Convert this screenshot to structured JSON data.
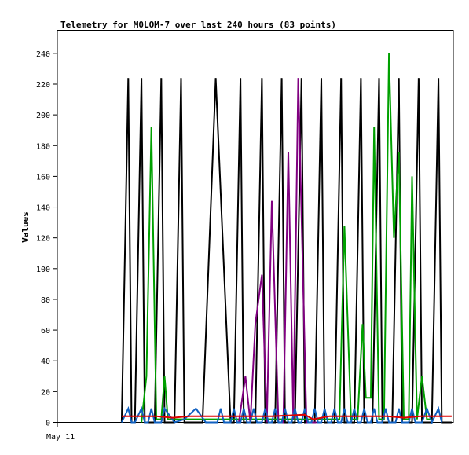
{
  "chart_data": {
    "type": "line",
    "title": "Telemetry for M0LOM-7 over last 240 hours (83 points)",
    "ylabel": "Values",
    "xlabel": "",
    "x_tick_label": "May 11",
    "ylim": [
      0,
      255
    ],
    "yticks": [
      0,
      20,
      40,
      60,
      80,
      100,
      120,
      140,
      160,
      180,
      200,
      220,
      240
    ],
    "x_range": [
      0,
      240
    ],
    "grid": false,
    "legend": "none",
    "x_unit": "hours",
    "series": [
      {
        "color": "#000000",
        "points": [
          [
            39,
            0
          ],
          [
            43,
            224
          ],
          [
            45,
            0
          ],
          [
            47,
            0
          ],
          [
            51,
            224
          ],
          [
            53,
            0
          ],
          [
            59,
            0
          ],
          [
            63,
            224
          ],
          [
            65,
            0
          ],
          [
            71,
            0
          ],
          [
            75,
            224
          ],
          [
            77,
            0
          ],
          [
            88,
            0
          ],
          [
            96,
            224
          ],
          [
            105,
            0
          ],
          [
            107,
            0
          ],
          [
            111,
            224
          ],
          [
            113,
            0
          ],
          [
            120,
            0
          ],
          [
            124,
            224
          ],
          [
            126,
            0
          ],
          [
            132,
            0
          ],
          [
            136,
            224
          ],
          [
            138,
            0
          ],
          [
            144,
            0
          ],
          [
            148,
            224
          ],
          [
            150,
            0
          ],
          [
            156,
            0
          ],
          [
            160,
            224
          ],
          [
            162,
            0
          ],
          [
            168,
            0
          ],
          [
            172,
            224
          ],
          [
            174,
            0
          ],
          [
            180,
            0
          ],
          [
            184,
            224
          ],
          [
            186,
            0
          ],
          [
            191,
            0
          ],
          [
            195,
            224
          ],
          [
            197,
            0
          ],
          [
            203,
            0
          ],
          [
            207,
            224
          ],
          [
            209,
            0
          ],
          [
            215,
            0
          ],
          [
            219,
            224
          ],
          [
            221,
            0
          ],
          [
            227,
            0
          ],
          [
            231,
            224
          ],
          [
            233,
            0
          ],
          [
            239,
            0
          ]
        ]
      },
      {
        "color": "#00a000",
        "points": [
          [
            51,
            0
          ],
          [
            54,
            30
          ],
          [
            57,
            192
          ],
          [
            60,
            2
          ],
          [
            63,
            2
          ],
          [
            65,
            30
          ],
          [
            67,
            2
          ],
          [
            171,
            2
          ],
          [
            174,
            128
          ],
          [
            178,
            2
          ],
          [
            182,
            2
          ],
          [
            185,
            64
          ],
          [
            187,
            16
          ],
          [
            190,
            16
          ],
          [
            192,
            192
          ],
          [
            195,
            2
          ],
          [
            198,
            2
          ],
          [
            201,
            240
          ],
          [
            204,
            120
          ],
          [
            207,
            176
          ],
          [
            210,
            2
          ],
          [
            213,
            2
          ],
          [
            215,
            160
          ],
          [
            218,
            2
          ],
          [
            221,
            30
          ],
          [
            224,
            2
          ],
          [
            227,
            2
          ]
        ]
      },
      {
        "color": "#800080",
        "points": [
          [
            110,
            0
          ],
          [
            114,
            30
          ],
          [
            117,
            0
          ],
          [
            120,
            64
          ],
          [
            124,
            96
          ],
          [
            127,
            0
          ],
          [
            130,
            144
          ],
          [
            134,
            0
          ],
          [
            137,
            0
          ],
          [
            140,
            176
          ],
          [
            143,
            2
          ],
          [
            146,
            224
          ],
          [
            151,
            0
          ],
          [
            153,
            0
          ],
          [
            157,
            0
          ]
        ]
      },
      {
        "color": "#1060c0",
        "points": [
          [
            39,
            0
          ],
          [
            43,
            9
          ],
          [
            45,
            0
          ],
          [
            47,
            0
          ],
          [
            51,
            9
          ],
          [
            53,
            0
          ],
          [
            55,
            0
          ],
          [
            57,
            9
          ],
          [
            59,
            0
          ],
          [
            63,
            0
          ],
          [
            65,
            9
          ],
          [
            71,
            0
          ],
          [
            77,
            2
          ],
          [
            84,
            9
          ],
          [
            90,
            0
          ],
          [
            97,
            0
          ],
          [
            99,
            9
          ],
          [
            101,
            0
          ],
          [
            105,
            0
          ],
          [
            107,
            9
          ],
          [
            109,
            0
          ],
          [
            111,
            0
          ],
          [
            113,
            9
          ],
          [
            115,
            0
          ],
          [
            117,
            0
          ],
          [
            119,
            9
          ],
          [
            121,
            0
          ],
          [
            124,
            0
          ],
          [
            126,
            9
          ],
          [
            128,
            0
          ],
          [
            130,
            0
          ],
          [
            132,
            9
          ],
          [
            134,
            0
          ],
          [
            136,
            0
          ],
          [
            138,
            9
          ],
          [
            140,
            0
          ],
          [
            142,
            0
          ],
          [
            144,
            9
          ],
          [
            146,
            0
          ],
          [
            148,
            0
          ],
          [
            150,
            9
          ],
          [
            152,
            0
          ],
          [
            154,
            0
          ],
          [
            156,
            9
          ],
          [
            158,
            0
          ],
          [
            160,
            0
          ],
          [
            162,
            9
          ],
          [
            164,
            0
          ],
          [
            166,
            0
          ],
          [
            168,
            9
          ],
          [
            170,
            0
          ],
          [
            172,
            0
          ],
          [
            174,
            9
          ],
          [
            176,
            0
          ],
          [
            178,
            0
          ],
          [
            180,
            9
          ],
          [
            182,
            0
          ],
          [
            184,
            0
          ],
          [
            186,
            9
          ],
          [
            188,
            0
          ],
          [
            190,
            0
          ],
          [
            192,
            9
          ],
          [
            194,
            0
          ],
          [
            197,
            0
          ],
          [
            199,
            9
          ],
          [
            201,
            0
          ],
          [
            205,
            0
          ],
          [
            207,
            9
          ],
          [
            209,
            0
          ],
          [
            213,
            0
          ],
          [
            215,
            9
          ],
          [
            217,
            0
          ],
          [
            221,
            0
          ],
          [
            224,
            9
          ],
          [
            227,
            0
          ],
          [
            231,
            9
          ],
          [
            233,
            0
          ]
        ]
      },
      {
        "color": "#e00000",
        "points": [
          [
            39,
            4
          ],
          [
            60,
            4
          ],
          [
            70,
            3
          ],
          [
            80,
            4
          ],
          [
            100,
            4
          ],
          [
            130,
            4
          ],
          [
            150,
            5
          ],
          [
            155,
            2
          ],
          [
            165,
            4
          ],
          [
            200,
            4
          ],
          [
            210,
            3
          ],
          [
            220,
            4
          ],
          [
            239,
            4
          ]
        ]
      }
    ]
  }
}
